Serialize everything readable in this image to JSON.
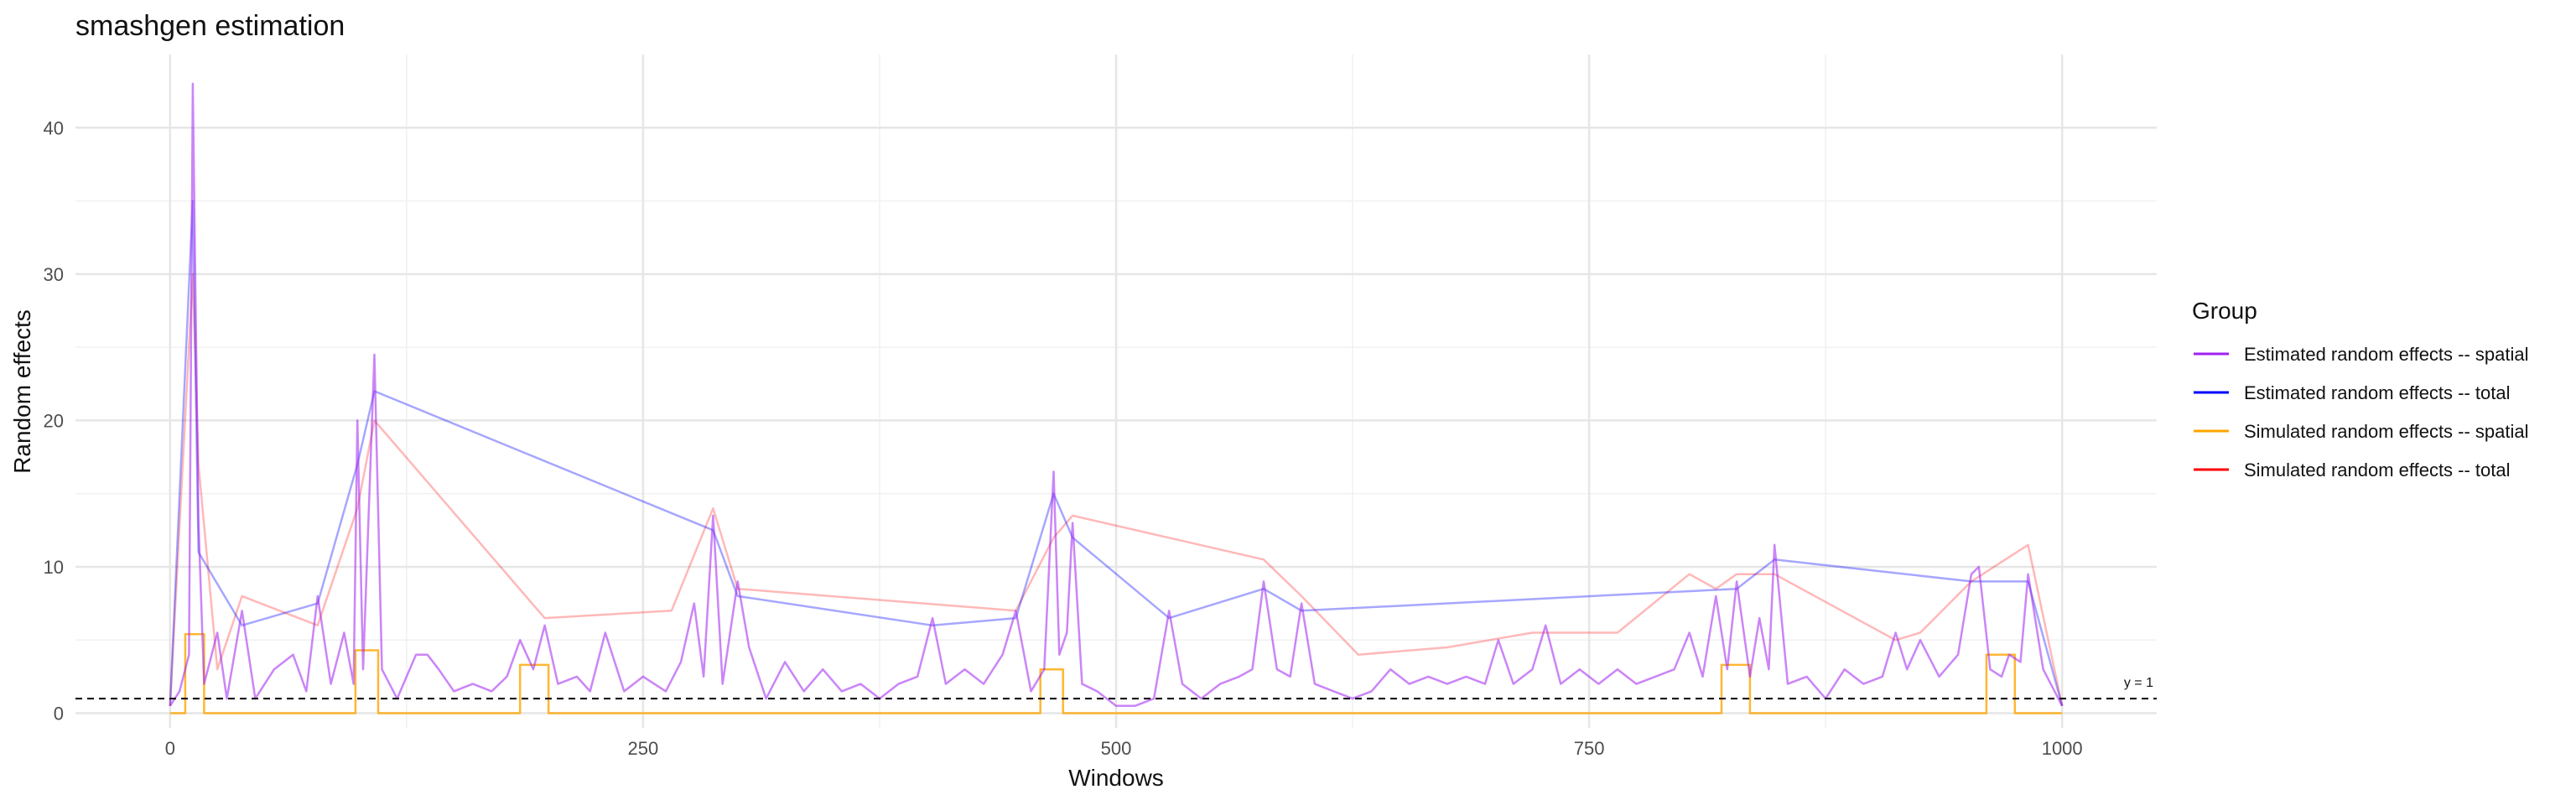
{
  "chart_data": {
    "type": "line",
    "title": "smashgen estimation",
    "xlabel": "Windows",
    "ylabel": "Random effects",
    "xlim": [
      -50,
      1050
    ],
    "ylim": [
      -1,
      45
    ],
    "x_ticks": [
      0,
      250,
      500,
      750,
      1000
    ],
    "y_ticks": [
      0,
      10,
      20,
      30,
      40
    ],
    "grid": true,
    "legend": {
      "title": "Group",
      "position": "right"
    },
    "reference_line": {
      "y": 1,
      "label": "y = 1",
      "style": "dashed",
      "color": "#000000"
    },
    "series": [
      {
        "name": "Estimated random effects -- spatial",
        "color": "#a020f0",
        "points": [
          [
            0,
            0.5
          ],
          [
            5,
            1.5
          ],
          [
            10,
            4
          ],
          [
            12,
            43
          ],
          [
            15,
            13
          ],
          [
            18,
            2
          ],
          [
            25,
            5.5
          ],
          [
            30,
            1
          ],
          [
            38,
            7
          ],
          [
            45,
            1
          ],
          [
            55,
            3
          ],
          [
            65,
            4
          ],
          [
            72,
            1.5
          ],
          [
            78,
            8
          ],
          [
            85,
            2
          ],
          [
            92,
            5.5
          ],
          [
            97,
            2
          ],
          [
            99,
            20
          ],
          [
            102,
            3
          ],
          [
            108,
            24.5
          ],
          [
            112,
            3
          ],
          [
            120,
            1
          ],
          [
            130,
            4
          ],
          [
            136,
            4
          ],
          [
            142,
            3
          ],
          [
            150,
            1.5
          ],
          [
            160,
            2
          ],
          [
            170,
            1.5
          ],
          [
            178,
            2.5
          ],
          [
            185,
            5
          ],
          [
            192,
            3
          ],
          [
            198,
            6
          ],
          [
            205,
            2
          ],
          [
            215,
            2.5
          ],
          [
            222,
            1.5
          ],
          [
            230,
            5.5
          ],
          [
            240,
            1.5
          ],
          [
            250,
            2.5
          ],
          [
            262,
            1.5
          ],
          [
            270,
            3.5
          ],
          [
            277,
            7.5
          ],
          [
            282,
            2.5
          ],
          [
            287,
            13.5
          ],
          [
            292,
            2
          ],
          [
            300,
            9
          ],
          [
            306,
            4.5
          ],
          [
            315,
            1
          ],
          [
            325,
            3.5
          ],
          [
            335,
            1.5
          ],
          [
            345,
            3
          ],
          [
            355,
            1.5
          ],
          [
            365,
            2
          ],
          [
            375,
            1
          ],
          [
            385,
            2
          ],
          [
            395,
            2.5
          ],
          [
            403,
            6.5
          ],
          [
            410,
            2
          ],
          [
            420,
            3
          ],
          [
            430,
            2
          ],
          [
            440,
            4
          ],
          [
            447,
            7
          ],
          [
            455,
            1.5
          ],
          [
            462,
            3
          ],
          [
            467,
            16.5
          ],
          [
            470,
            4
          ],
          [
            474,
            5.5
          ],
          [
            477,
            13
          ],
          [
            482,
            2
          ],
          [
            490,
            1.5
          ],
          [
            500,
            0.5
          ],
          [
            510,
            0.5
          ],
          [
            520,
            1
          ],
          [
            528,
            7
          ],
          [
            535,
            2
          ],
          [
            545,
            1
          ],
          [
            555,
            2
          ],
          [
            565,
            2.5
          ],
          [
            572,
            3
          ],
          [
            578,
            9
          ],
          [
            585,
            3
          ],
          [
            592,
            2.5
          ],
          [
            598,
            7.5
          ],
          [
            605,
            2
          ],
          [
            615,
            1.5
          ],
          [
            625,
            1
          ],
          [
            635,
            1.5
          ],
          [
            645,
            3
          ],
          [
            655,
            2
          ],
          [
            665,
            2.5
          ],
          [
            675,
            2
          ],
          [
            685,
            2.5
          ],
          [
            695,
            2
          ],
          [
            702,
            5
          ],
          [
            710,
            2
          ],
          [
            720,
            3
          ],
          [
            727,
            6
          ],
          [
            735,
            2
          ],
          [
            745,
            3
          ],
          [
            755,
            2
          ],
          [
            765,
            3
          ],
          [
            775,
            2
          ],
          [
            785,
            2.5
          ],
          [
            795,
            3
          ],
          [
            803,
            5.5
          ],
          [
            810,
            2.5
          ],
          [
            817,
            8
          ],
          [
            823,
            3
          ],
          [
            828,
            9
          ],
          [
            835,
            2.5
          ],
          [
            840,
            6.5
          ],
          [
            845,
            3
          ],
          [
            848,
            11.5
          ],
          [
            855,
            2
          ],
          [
            865,
            2.5
          ],
          [
            875,
            1
          ],
          [
            885,
            3
          ],
          [
            895,
            2
          ],
          [
            905,
            2.5
          ],
          [
            912,
            5.5
          ],
          [
            918,
            3
          ],
          [
            925,
            5
          ],
          [
            935,
            2.5
          ],
          [
            945,
            4
          ],
          [
            952,
            9.5
          ],
          [
            956,
            10
          ],
          [
            962,
            3
          ],
          [
            968,
            2.5
          ],
          [
            972,
            4
          ],
          [
            978,
            3.5
          ],
          [
            982,
            9.5
          ],
          [
            990,
            3
          ],
          [
            1000,
            0.5
          ]
        ]
      },
      {
        "name": "Estimated random effects -- total",
        "color": "#0000ff",
        "points": [
          [
            0,
            0.5
          ],
          [
            12,
            35
          ],
          [
            15,
            11
          ],
          [
            38,
            6
          ],
          [
            78,
            7.5
          ],
          [
            99,
            17
          ],
          [
            108,
            22
          ],
          [
            287,
            12.5
          ],
          [
            300,
            8
          ],
          [
            403,
            6
          ],
          [
            447,
            6.5
          ],
          [
            467,
            15
          ],
          [
            477,
            12
          ],
          [
            528,
            6.5
          ],
          [
            578,
            8.5
          ],
          [
            598,
            7
          ],
          [
            828,
            8.5
          ],
          [
            848,
            10.5
          ],
          [
            952,
            9
          ],
          [
            982,
            9
          ],
          [
            1000,
            0.5
          ]
        ]
      },
      {
        "name": "Simulated random effects -- spatial",
        "color": "#ffa500",
        "points": [
          [
            0,
            0
          ],
          [
            8,
            0
          ],
          [
            8,
            5.4
          ],
          [
            18,
            5.4
          ],
          [
            18,
            0
          ],
          [
            98,
            0
          ],
          [
            98,
            4.3
          ],
          [
            110,
            4.3
          ],
          [
            110,
            0
          ],
          [
            185,
            0
          ],
          [
            185,
            3.3
          ],
          [
            200,
            3.3
          ],
          [
            200,
            0
          ],
          [
            460,
            0
          ],
          [
            460,
            3
          ],
          [
            472,
            3
          ],
          [
            472,
            0
          ],
          [
            820,
            0
          ],
          [
            820,
            3.3
          ],
          [
            835,
            3.3
          ],
          [
            835,
            0
          ],
          [
            960,
            0
          ],
          [
            960,
            4
          ],
          [
            975,
            4
          ],
          [
            975,
            0
          ],
          [
            1000,
            0
          ]
        ]
      },
      {
        "name": "Simulated random effects -- total",
        "color": "#ff0000",
        "points": [
          [
            0,
            0.5
          ],
          [
            12,
            30
          ],
          [
            15,
            17
          ],
          [
            25,
            3
          ],
          [
            38,
            8
          ],
          [
            78,
            6
          ],
          [
            99,
            14
          ],
          [
            108,
            20
          ],
          [
            198,
            6.5
          ],
          [
            265,
            7
          ],
          [
            287,
            14
          ],
          [
            300,
            8.5
          ],
          [
            447,
            7
          ],
          [
            467,
            12
          ],
          [
            477,
            13.5
          ],
          [
            578,
            10.5
          ],
          [
            598,
            8
          ],
          [
            628,
            4
          ],
          [
            675,
            4.5
          ],
          [
            720,
            5.5
          ],
          [
            748,
            5.5
          ],
          [
            765,
            5.5
          ],
          [
            803,
            9.5
          ],
          [
            817,
            8.5
          ],
          [
            828,
            9.5
          ],
          [
            848,
            9.5
          ],
          [
            912,
            5
          ],
          [
            925,
            5.5
          ],
          [
            952,
            9
          ],
          [
            982,
            11.5
          ],
          [
            1000,
            0.5
          ]
        ]
      }
    ]
  }
}
